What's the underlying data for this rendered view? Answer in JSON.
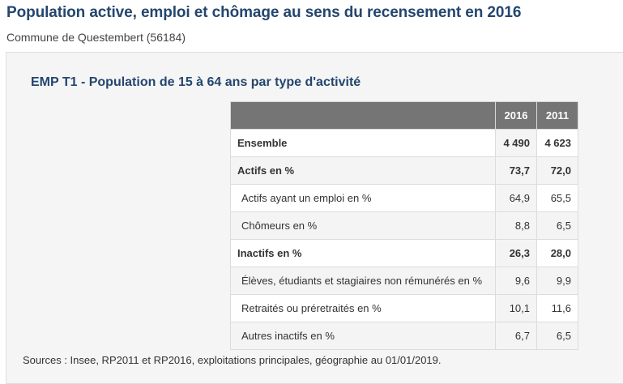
{
  "header": {
    "title": "Population active, emploi et chômage au sens du recensement en 2016",
    "subtitle": "Commune de Questembert (56184)"
  },
  "table": {
    "title": "EMP T1 - Population de 15 à 64 ans par type d'activité",
    "columns": [
      "2016",
      "2011"
    ],
    "rows": [
      {
        "label": "Ensemble",
        "v2016": "4 490",
        "v2011": "4 623"
      },
      {
        "label": "Actifs en %",
        "v2016": "73,7",
        "v2011": "72,0"
      },
      {
        "label": "Actifs ayant un emploi en %",
        "v2016": "64,9",
        "v2011": "65,5"
      },
      {
        "label": "Chômeurs en %",
        "v2016": "8,8",
        "v2011": "6,5"
      },
      {
        "label": "Inactifs en %",
        "v2016": "26,3",
        "v2011": "28,0"
      },
      {
        "label": "Élèves, étudiants et stagiaires non rémunérés en %",
        "v2016": "9,6",
        "v2011": "9,9"
      },
      {
        "label": "Retraités ou préretraités en %",
        "v2016": "10,1",
        "v2011": "11,6"
      },
      {
        "label": "Autres inactifs en %",
        "v2016": "6,7",
        "v2011": "6,5"
      }
    ],
    "sources": "Sources : Insee, RP2011 et RP2016, exploitations principales, géographie au 01/01/2019."
  }
}
